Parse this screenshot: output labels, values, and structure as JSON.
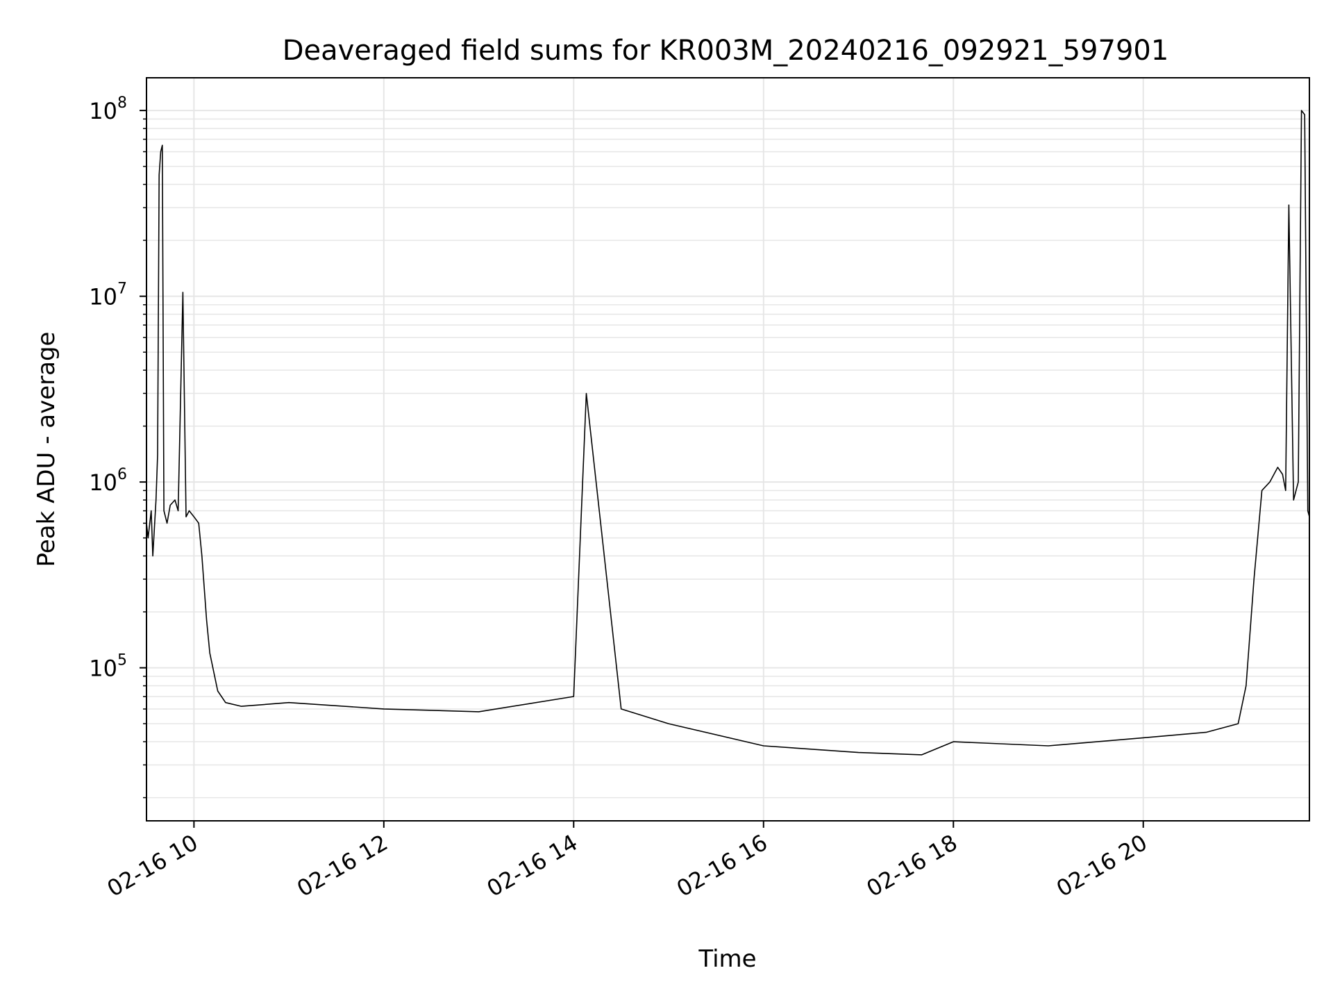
{
  "chart_data": {
    "type": "line",
    "title": "Deaveraged field sums for KR003M_20240216_092921_597901",
    "xlabel": "Time",
    "ylabel": "Peak ADU - average",
    "yscale": "log",
    "grid": true,
    "line_color": "#000000",
    "grid_color": "#e6e6e6",
    "xlim": [
      "2024-02-16 09:30",
      "2024-02-16 21:45"
    ],
    "ylim": [
      15000,
      150000000
    ],
    "x_ticks": [
      {
        "value": "2024-02-16 10:00",
        "label": "02-16 10"
      },
      {
        "value": "2024-02-16 12:00",
        "label": "02-16 12"
      },
      {
        "value": "2024-02-16 14:00",
        "label": "02-16 14"
      },
      {
        "value": "2024-02-16 16:00",
        "label": "02-16 16"
      },
      {
        "value": "2024-02-16 18:00",
        "label": "02-16 18"
      },
      {
        "value": "2024-02-16 20:00",
        "label": "02-16 20"
      }
    ],
    "y_ticks": [
      {
        "value": 100000,
        "base": "10",
        "exp": "5"
      },
      {
        "value": 1000000,
        "base": "10",
        "exp": "6"
      },
      {
        "value": 10000000,
        "base": "10",
        "exp": "7"
      },
      {
        "value": 100000000,
        "base": "10",
        "exp": "8"
      }
    ],
    "series": [
      {
        "x": [
          "2024-02-16 09:30",
          "2024-02-16 09:31",
          "2024-02-16 09:33",
          "2024-02-16 09:34",
          "2024-02-16 09:36",
          "2024-02-16 09:37",
          "2024-02-16 09:38",
          "2024-02-16 09:39",
          "2024-02-16 09:40",
          "2024-02-16 09:41",
          "2024-02-16 09:43",
          "2024-02-16 09:45",
          "2024-02-16 09:48",
          "2024-02-16 09:50",
          "2024-02-16 09:53",
          "2024-02-16 09:55",
          "2024-02-16 09:57",
          "2024-02-16 10:00",
          "2024-02-16 10:03",
          "2024-02-16 10:05",
          "2024-02-16 10:08",
          "2024-02-16 10:10",
          "2024-02-16 10:15",
          "2024-02-16 10:20",
          "2024-02-16 10:30",
          "2024-02-16 11:00",
          "2024-02-16 12:00",
          "2024-02-16 13:00",
          "2024-02-16 14:00",
          "2024-02-16 14:08",
          "2024-02-16 14:30",
          "2024-02-16 15:00",
          "2024-02-16 16:00",
          "2024-02-16 17:00",
          "2024-02-16 17:40",
          "2024-02-16 18:00",
          "2024-02-16 19:00",
          "2024-02-16 20:00",
          "2024-02-16 20:40",
          "2024-02-16 21:00",
          "2024-02-16 21:05",
          "2024-02-16 21:10",
          "2024-02-16 21:15",
          "2024-02-16 21:20",
          "2024-02-16 21:25",
          "2024-02-16 21:28",
          "2024-02-16 21:30",
          "2024-02-16 21:32",
          "2024-02-16 21:35",
          "2024-02-16 21:38",
          "2024-02-16 21:40",
          "2024-02-16 21:42",
          "2024-02-16 21:44",
          "2024-02-16 21:45"
        ],
        "y": [
          600000,
          500000,
          700000,
          400000,
          800000,
          1400000,
          45000000,
          60000000,
          65000000,
          700000,
          600000,
          750000,
          800000,
          700000,
          10500000,
          650000,
          700000,
          650000,
          600000,
          400000,
          180000,
          120000,
          75000,
          65000,
          62000,
          65000,
          60000,
          58000,
          70000,
          3000000,
          60000,
          50000,
          38000,
          35000,
          34000,
          40000,
          38000,
          42000,
          45000,
          50000,
          80000,
          300000,
          900000,
          1000000,
          1200000,
          1100000,
          900000,
          31000000,
          800000,
          1000000,
          100000000,
          95000000,
          700000,
          650000
        ]
      }
    ]
  }
}
